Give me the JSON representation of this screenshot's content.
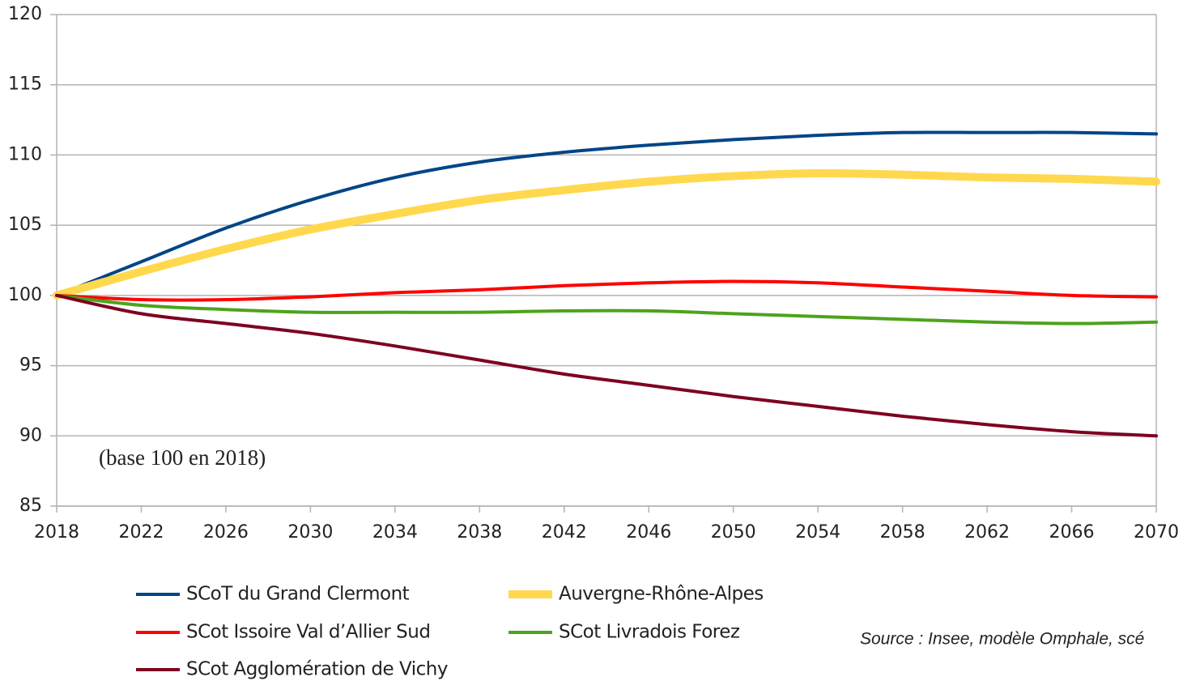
{
  "chart_data": {
    "type": "line",
    "x": [
      2018,
      2022,
      2026,
      2030,
      2034,
      2038,
      2042,
      2046,
      2050,
      2054,
      2058,
      2062,
      2066,
      2070
    ],
    "series": [
      {
        "name": "SCoT du Grand Clermont",
        "color": "#004586",
        "width": 4,
        "values": [
          100,
          102.4,
          104.8,
          106.8,
          108.4,
          109.5,
          110.2,
          110.7,
          111.1,
          111.4,
          111.6,
          111.6,
          111.6,
          111.5
        ]
      },
      {
        "name": "Auvergne-Rhône-Alpes",
        "color": "#ffd84d",
        "width": 10,
        "values": [
          100,
          101.7,
          103.3,
          104.7,
          105.8,
          106.8,
          107.5,
          108.1,
          108.5,
          108.7,
          108.6,
          108.4,
          108.3,
          108.1
        ]
      },
      {
        "name": "SCot Issoire Val d’Allier Sud",
        "color": "#ff0000",
        "width": 4,
        "values": [
          100,
          99.7,
          99.7,
          99.9,
          100.2,
          100.4,
          100.7,
          100.9,
          101.0,
          100.9,
          100.6,
          100.3,
          100.0,
          99.9
        ]
      },
      {
        "name": "SCot Livradois Forez",
        "color": "#4da31c",
        "width": 4,
        "values": [
          100,
          99.3,
          99.0,
          98.8,
          98.8,
          98.8,
          98.9,
          98.9,
          98.7,
          98.5,
          98.3,
          98.1,
          98.0,
          98.1
        ]
      },
      {
        "name": "SCot Agglomération de Vichy",
        "color": "#7e0021",
        "width": 4,
        "values": [
          100,
          98.7,
          98.0,
          97.3,
          96.4,
          95.4,
          94.4,
          93.6,
          92.8,
          92.1,
          91.4,
          90.8,
          90.3,
          90.0
        ]
      }
    ],
    "xlim": [
      2018,
      2070
    ],
    "xticks": [
      2018,
      2022,
      2026,
      2030,
      2034,
      2038,
      2042,
      2046,
      2050,
      2054,
      2058,
      2062,
      2066,
      2070
    ],
    "ylim": [
      85,
      120
    ],
    "yticks": [
      85,
      90,
      95,
      100,
      105,
      110,
      115,
      120
    ],
    "grid": true,
    "annotation": "(base 100 en 2018)",
    "source": "Source : Insee, modèle Omphale, scé"
  }
}
